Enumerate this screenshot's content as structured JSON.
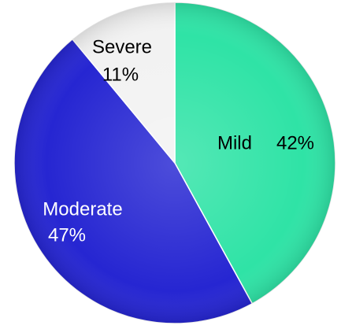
{
  "chart_data": {
    "type": "pie",
    "categories": [
      "Mild",
      "Moderate",
      "Severe"
    ],
    "values": [
      42,
      47,
      11
    ],
    "value_labels": [
      "42%",
      "47%",
      "11%"
    ],
    "colors": [
      "#2fe3a6",
      "#2626d2",
      "#f2f2f2"
    ]
  }
}
